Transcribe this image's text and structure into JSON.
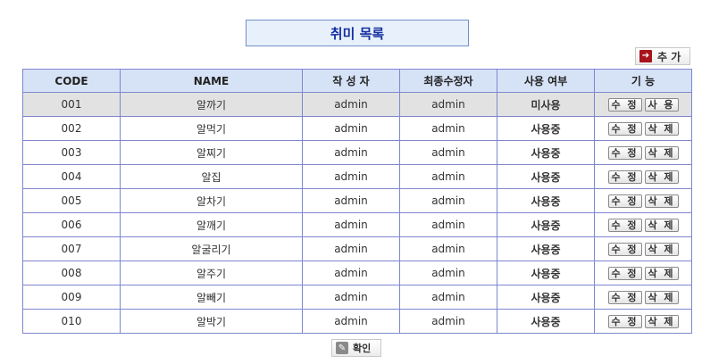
{
  "page_title": "취미 목록",
  "add_button": {
    "label": "추 가",
    "icon": "arrow-right-icon"
  },
  "table": {
    "headers": [
      "CODE",
      "NAME",
      "작 성 자",
      "최종수정자",
      "사용 여부",
      "기 능"
    ],
    "rows": [
      {
        "code": "001",
        "name": "알까기",
        "author": "admin",
        "modifier": "admin",
        "status": "미사용",
        "edit": "수 정",
        "action": "사 용"
      },
      {
        "code": "002",
        "name": "알먹기",
        "author": "admin",
        "modifier": "admin",
        "status": "사용중",
        "edit": "수 정",
        "action": "삭 제"
      },
      {
        "code": "003",
        "name": "알찌기",
        "author": "admin",
        "modifier": "admin",
        "status": "사용중",
        "edit": "수 정",
        "action": "삭 제"
      },
      {
        "code": "004",
        "name": "알집",
        "author": "admin",
        "modifier": "admin",
        "status": "사용중",
        "edit": "수 정",
        "action": "삭 제"
      },
      {
        "code": "005",
        "name": "알차기",
        "author": "admin",
        "modifier": "admin",
        "status": "사용중",
        "edit": "수 정",
        "action": "삭 제"
      },
      {
        "code": "006",
        "name": "알깨기",
        "author": "admin",
        "modifier": "admin",
        "status": "사용중",
        "edit": "수 정",
        "action": "삭 제"
      },
      {
        "code": "007",
        "name": "알굴리기",
        "author": "admin",
        "modifier": "admin",
        "status": "사용중",
        "edit": "수 정",
        "action": "삭 제"
      },
      {
        "code": "008",
        "name": "알주기",
        "author": "admin",
        "modifier": "admin",
        "status": "사용중",
        "edit": "수 정",
        "action": "삭 제"
      },
      {
        "code": "009",
        "name": "알빼기",
        "author": "admin",
        "modifier": "admin",
        "status": "사용중",
        "edit": "수 정",
        "action": "삭 제"
      },
      {
        "code": "010",
        "name": "알박기",
        "author": "admin",
        "modifier": "admin",
        "status": "사용중",
        "edit": "수 정",
        "action": "삭 제"
      }
    ]
  },
  "confirm_button": {
    "label": "확인",
    "icon": "pencil-icon"
  },
  "colors": {
    "header_bg": "#d6e2f6",
    "border": "#7f86cf",
    "title_text": "#1530a0",
    "selected_row": "#e2e2e2",
    "add_icon": "#a8141c"
  }
}
